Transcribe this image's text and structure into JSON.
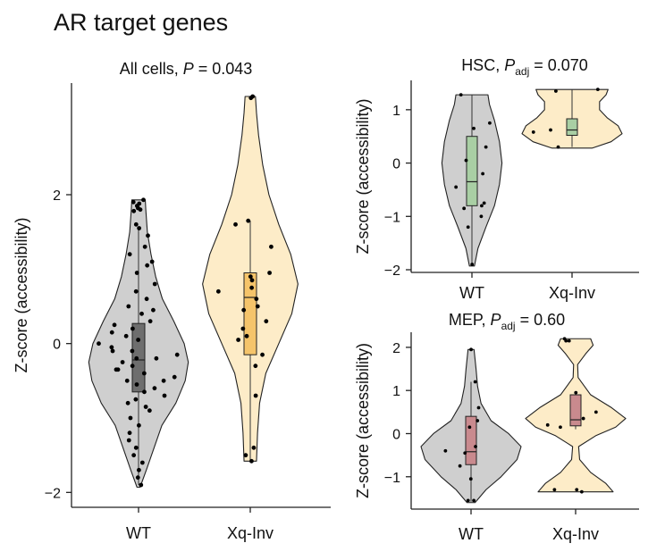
{
  "figure_title": "AR target genes",
  "colors": {
    "wt_violin": "#cfcfcf",
    "xq_violin": "#fdecc8",
    "all_box": "#f5c46a",
    "all_wt_box": "#6e6e6e",
    "hsc_box": "#a9cfa4",
    "mep_box": "#c98a8e",
    "points": "#000000"
  },
  "chart_data": [
    {
      "id": "all-cells",
      "type": "violin",
      "title": "All cells, P = 0.043",
      "title_parts": {
        "prefix": "All cells, ",
        "stat": "P",
        "sub": "",
        "suffix": " = 0.043"
      },
      "xlabel": "",
      "ylabel": "Z-score (accessibility)",
      "categories": [
        "WT",
        "Xq-Inv"
      ],
      "ylim": [
        -2.2,
        3.5
      ],
      "yticks": [
        -2,
        0,
        2
      ],
      "ytick_labels": [
        "−2",
        "0",
        "2"
      ],
      "groups": [
        {
          "name": "WT",
          "min": -1.93,
          "q1": -0.65,
          "median": -0.22,
          "q3": 0.27,
          "max": 1.93,
          "whisker_low": -1.9,
          "whisker_high": 1.55,
          "violin_profile": [
            [
              -1.93,
              0.03
            ],
            [
              -1.7,
              0.15
            ],
            [
              -1.4,
              0.3
            ],
            [
              -1.1,
              0.45
            ],
            [
              -0.8,
              0.72
            ],
            [
              -0.5,
              0.9
            ],
            [
              -0.25,
              0.96
            ],
            [
              0.0,
              0.88
            ],
            [
              0.3,
              0.68
            ],
            [
              0.6,
              0.46
            ],
            [
              0.9,
              0.33
            ],
            [
              1.2,
              0.24
            ],
            [
              1.5,
              0.17
            ],
            [
              1.8,
              0.14
            ],
            [
              1.93,
              0.13
            ]
          ],
          "points": [
            1.93,
            1.9,
            1.88,
            1.85,
            1.82,
            1.8,
            1.78,
            1.6,
            1.55,
            1.45,
            1.3,
            1.2,
            1.1,
            1.05,
            0.95,
            0.8,
            0.7,
            0.6,
            0.5,
            0.45,
            0.4,
            0.3,
            0.2,
            0.15,
            0.1,
            0.05,
            0.0,
            -0.05,
            -0.1,
            -0.15,
            -0.2,
            -0.25,
            -0.3,
            -0.35,
            -0.4,
            -0.45,
            -0.5,
            -0.55,
            -0.6,
            -0.65,
            -0.7,
            -0.75,
            -0.8,
            -0.85,
            -0.9,
            -1.0,
            -1.1,
            -1.2,
            -1.3,
            -1.4,
            -1.5,
            -1.6,
            -1.7,
            -1.8,
            -1.9,
            -0.2,
            -0.35,
            -0.5,
            -0.1,
            0.25
          ]
        },
        {
          "name": "Xq-Inv",
          "min": -1.58,
          "q1": -0.15,
          "median": 0.62,
          "q3": 0.95,
          "max": 3.32,
          "whisker_low": -1.58,
          "whisker_high": 1.65,
          "violin_profile": [
            [
              -1.58,
              0.12
            ],
            [
              -1.2,
              0.14
            ],
            [
              -0.8,
              0.18
            ],
            [
              -0.4,
              0.3
            ],
            [
              0.0,
              0.55
            ],
            [
              0.4,
              0.8
            ],
            [
              0.8,
              0.92
            ],
            [
              1.2,
              0.78
            ],
            [
              1.6,
              0.55
            ],
            [
              2.0,
              0.36
            ],
            [
              2.4,
              0.24
            ],
            [
              2.8,
              0.16
            ],
            [
              3.1,
              0.12
            ],
            [
              3.32,
              0.1
            ]
          ],
          "points": [
            3.32,
            3.3,
            1.65,
            1.6,
            1.3,
            0.95,
            0.9,
            0.85,
            0.75,
            0.7,
            0.6,
            0.5,
            0.45,
            0.3,
            0.2,
            0.1,
            0.05,
            -0.15,
            -0.3,
            -0.7,
            -1.4,
            -1.5,
            -1.58
          ]
        }
      ]
    },
    {
      "id": "hsc",
      "type": "violin",
      "title": "HSC, Padj = 0.070",
      "title_parts": {
        "prefix": "HSC, ",
        "stat": "P",
        "sub": "adj",
        "suffix": " = 0.070"
      },
      "xlabel": "",
      "ylabel": "Z-score (accessibility)",
      "categories": [
        "WT",
        "Xq-Inv"
      ],
      "ylim": [
        -2.05,
        1.55
      ],
      "yticks": [
        -2,
        -1,
        0,
        1
      ],
      "ytick_labels": [
        "−2",
        "−1",
        "0",
        "1"
      ],
      "groups": [
        {
          "name": "WT",
          "min": -1.93,
          "q1": -0.8,
          "median": -0.35,
          "q3": 0.5,
          "max": 1.28,
          "whisker_low": -1.9,
          "whisker_high": 1.28,
          "violin_profile": [
            [
              -1.93,
              0.05
            ],
            [
              -1.6,
              0.12
            ],
            [
              -1.2,
              0.28
            ],
            [
              -0.8,
              0.45
            ],
            [
              -0.4,
              0.55
            ],
            [
              0.0,
              0.6
            ],
            [
              0.4,
              0.55
            ],
            [
              0.8,
              0.45
            ],
            [
              1.1,
              0.35
            ],
            [
              1.28,
              0.32
            ]
          ],
          "points": [
            1.28,
            0.75,
            0.65,
            0.3,
            0.05,
            -0.2,
            -0.45,
            -0.75,
            -0.8,
            -0.85,
            -1.0,
            -1.2,
            -1.9
          ]
        },
        {
          "name": "Xq-Inv",
          "min": 0.28,
          "q1": 0.52,
          "median": 0.62,
          "q3": 0.83,
          "max": 1.38,
          "whisker_low": 0.3,
          "whisker_high": 1.38,
          "violin_profile": [
            [
              0.28,
              0.4
            ],
            [
              0.4,
              0.78
            ],
            [
              0.55,
              1.0
            ],
            [
              0.7,
              0.92
            ],
            [
              0.85,
              0.7
            ],
            [
              1.0,
              0.55
            ],
            [
              1.15,
              0.55
            ],
            [
              1.28,
              0.68
            ],
            [
              1.38,
              0.72
            ]
          ],
          "points": [
            1.38,
            1.35,
            0.62,
            0.58,
            0.3
          ]
        }
      ]
    },
    {
      "id": "mep",
      "type": "violin",
      "title": "MEP, Padj = 0.60",
      "title_parts": {
        "prefix": "MEP, ",
        "stat": "P",
        "sub": "adj",
        "suffix": " = 0.60"
      },
      "xlabel": "",
      "ylabel": "Z-score (accessibility)",
      "categories": [
        "WT",
        "Xq-Inv"
      ],
      "ylim": [
        -1.75,
        2.35
      ],
      "yticks": [
        -1,
        0,
        1,
        2
      ],
      "ytick_labels": [
        "−1",
        "0",
        "1",
        "2"
      ],
      "groups": [
        {
          "name": "WT",
          "min": -1.6,
          "q1": -0.72,
          "median": -0.42,
          "q3": 0.4,
          "max": 1.95,
          "whisker_low": -1.58,
          "whisker_high": 1.2,
          "violin_profile": [
            [
              -1.6,
              0.08
            ],
            [
              -1.3,
              0.3
            ],
            [
              -1.0,
              0.6
            ],
            [
              -0.6,
              0.92
            ],
            [
              -0.3,
              1.0
            ],
            [
              0.0,
              0.75
            ],
            [
              0.3,
              0.4
            ],
            [
              0.7,
              0.2
            ],
            [
              1.1,
              0.13
            ],
            [
              1.5,
              0.1
            ],
            [
              1.95,
              0.06
            ]
          ],
          "points": [
            1.95,
            1.2,
            0.6,
            0.3,
            0.15,
            -0.3,
            -0.4,
            -0.45,
            -0.75,
            -1.05,
            -1.55,
            -1.55
          ]
        },
        {
          "name": "Xq-Inv",
          "min": -1.35,
          "q1": 0.18,
          "median": 0.32,
          "q3": 0.9,
          "max": 2.2,
          "whisker_low": 0.1,
          "whisker_high": 0.95,
          "violin_profile": [
            [
              -1.35,
              0.75
            ],
            [
              -1.15,
              0.6
            ],
            [
              -0.9,
              0.3
            ],
            [
              -0.6,
              0.08
            ],
            [
              -0.3,
              0.06
            ],
            [
              -0.05,
              0.4
            ],
            [
              0.15,
              0.8
            ],
            [
              0.35,
              1.0
            ],
            [
              0.6,
              0.72
            ],
            [
              0.9,
              0.3
            ],
            [
              1.3,
              0.05
            ],
            [
              1.6,
              0.04
            ],
            [
              1.85,
              0.2
            ],
            [
              2.05,
              0.35
            ],
            [
              2.2,
              0.3
            ]
          ],
          "points": [
            2.2,
            2.15,
            2.15,
            0.95,
            0.5,
            0.35,
            0.2,
            0.15,
            -1.3,
            -1.3,
            -1.35
          ]
        }
      ]
    }
  ]
}
